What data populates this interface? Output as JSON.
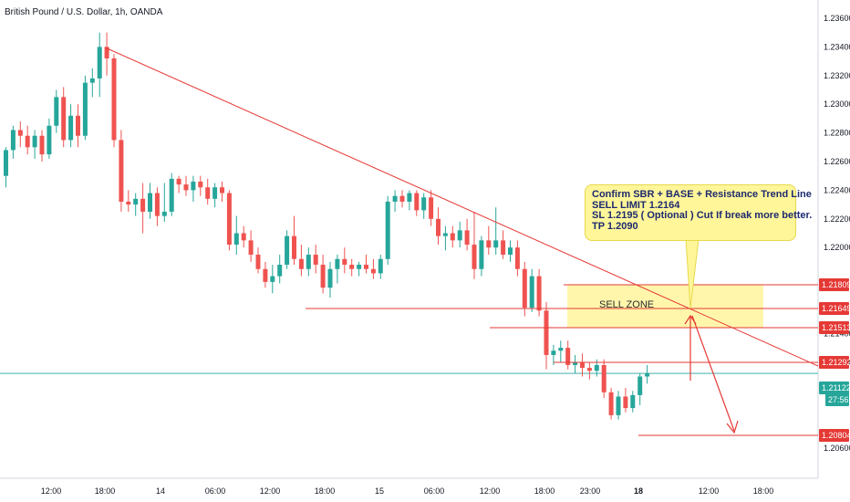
{
  "header": {
    "title": "British Pound / U.S. Dollar, 1h, OANDA"
  },
  "annotation": {
    "lines": [
      "Confirm SBR + BASE + Resistance Trend Line",
      "SELL LIMIT 1.2164",
      "SL 1.2195 ( Optional ) Cut If break more better.",
      "TP 1.2090"
    ],
    "zone_label": "SELL ZONE"
  },
  "colors": {
    "up": "#26a69a",
    "down": "#ef5350",
    "line": "#e53935",
    "zone": "#fff59d",
    "current": "#26a69a"
  },
  "chart_data": {
    "type": "candlestick",
    "title": "British Pound / U.S. Dollar, 1h, OANDA",
    "ylim": [
      1.2055,
      1.2375
    ],
    "x_ticks": [
      "12:00",
      "18:00",
      "14",
      "06:00",
      "12:00",
      "18:00",
      "15",
      "06:00",
      "12:00",
      "18:00",
      "23:00",
      "18",
      "12:00",
      "18:00"
    ],
    "y_ticks": [
      "1.23600",
      "1.23400",
      "1.23200",
      "1.23000",
      "1.22800",
      "1.22600",
      "1.22400",
      "1.22200",
      "1.22000",
      "1.21400",
      "1.21200",
      "1.20600"
    ],
    "price_labels": [
      {
        "value": 1.21809,
        "text": "1.21809"
      },
      {
        "value": 1.21649,
        "text": "1.21649"
      },
      {
        "value": 1.21513,
        "text": "1.21513"
      },
      {
        "value": 1.21292,
        "text": "1.21292"
      },
      {
        "value": 1.21122,
        "text": "1.21122"
      },
      {
        "value": 1.20804,
        "text": "1.20804"
      }
    ],
    "countdown": "27:56",
    "current_price": 1.21122,
    "candles": [
      [
        1.225,
        1.227,
        1.2242,
        1.2268
      ],
      [
        1.2268,
        1.2285,
        1.2262,
        1.2282
      ],
      [
        1.2282,
        1.2288,
        1.227,
        1.2278
      ],
      [
        1.2278,
        1.2285,
        1.2265,
        1.227
      ],
      [
        1.227,
        1.2282,
        1.2262,
        1.2278
      ],
      [
        1.2278,
        1.2282,
        1.226,
        1.2265
      ],
      [
        1.2265,
        1.229,
        1.2262,
        1.2285
      ],
      [
        1.2285,
        1.231,
        1.228,
        1.2305
      ],
      [
        1.2305,
        1.2312,
        1.227,
        1.2275
      ],
      [
        1.2275,
        1.23,
        1.227,
        1.2292
      ],
      [
        1.2292,
        1.23,
        1.227,
        1.2278
      ],
      [
        1.2278,
        1.232,
        1.2275,
        1.2315
      ],
      [
        1.2315,
        1.2325,
        1.2305,
        1.2318
      ],
      [
        1.2318,
        1.235,
        1.2305,
        1.234
      ],
      [
        1.234,
        1.235,
        1.232,
        1.2332
      ],
      [
        1.2332,
        1.2335,
        1.227,
        1.2275
      ],
      [
        1.2275,
        1.2282,
        1.2225,
        1.2232
      ],
      [
        1.2232,
        1.224,
        1.2225,
        1.223
      ],
      [
        1.223,
        1.2238,
        1.2222,
        1.2234
      ],
      [
        1.2234,
        1.2245,
        1.221,
        1.2225
      ],
      [
        1.2225,
        1.2245,
        1.222,
        1.2238
      ],
      [
        1.2238,
        1.2242,
        1.2215,
        1.2222
      ],
      [
        1.2222,
        1.2245,
        1.2218,
        1.2225
      ],
      [
        1.2225,
        1.2252,
        1.2222,
        1.2248
      ],
      [
        1.2248,
        1.225,
        1.2238,
        1.2244
      ],
      [
        1.2244,
        1.225,
        1.2236,
        1.224
      ],
      [
        1.224,
        1.225,
        1.2232,
        1.2246
      ],
      [
        1.2246,
        1.225,
        1.2236,
        1.2242
      ],
      [
        1.2242,
        1.2248,
        1.223,
        1.2234
      ],
      [
        1.2234,
        1.2245,
        1.2228,
        1.2242
      ],
      [
        1.2242,
        1.2246,
        1.2232,
        1.2238
      ],
      [
        1.2238,
        1.224,
        1.2198,
        1.2202
      ],
      [
        1.2202,
        1.2222,
        1.2195,
        1.221
      ],
      [
        1.221,
        1.2215,
        1.22,
        1.2205
      ],
      [
        1.2205,
        1.2212,
        1.219,
        1.2195
      ],
      [
        1.2195,
        1.22,
        1.2182,
        1.2185
      ],
      [
        1.2185,
        1.219,
        1.2172,
        1.2176
      ],
      [
        1.2176,
        1.2188,
        1.2168,
        1.218
      ],
      [
        1.218,
        1.2195,
        1.2175,
        1.2188
      ],
      [
        1.2188,
        1.2212,
        1.2185,
        1.2208
      ],
      [
        1.2208,
        1.2222,
        1.2188,
        1.2192
      ],
      [
        1.2192,
        1.2202,
        1.218,
        1.2185
      ],
      [
        1.2185,
        1.22,
        1.218,
        1.2195
      ],
      [
        1.2195,
        1.2202,
        1.2182,
        1.2188
      ],
      [
        1.2188,
        1.2195,
        1.2168,
        1.2172
      ],
      [
        1.2172,
        1.219,
        1.2165,
        1.2185
      ],
      [
        1.2185,
        1.2195,
        1.2175,
        1.2192
      ],
      [
        1.2192,
        1.22,
        1.2182,
        1.2188
      ],
      [
        1.2188,
        1.2192,
        1.218,
        1.2185
      ],
      [
        1.2185,
        1.219,
        1.218,
        1.2188
      ],
      [
        1.2188,
        1.2195,
        1.2182,
        1.2185
      ],
      [
        1.2185,
        1.2192,
        1.2178,
        1.2182
      ],
      [
        1.2182,
        1.2195,
        1.2178,
        1.2192
      ],
      [
        1.2192,
        1.2236,
        1.2188,
        1.2232
      ],
      [
        1.2232,
        1.224,
        1.2225,
        1.2236
      ],
      [
        1.2236,
        1.224,
        1.2228,
        1.2232
      ],
      [
        1.2232,
        1.224,
        1.2226,
        1.2238
      ],
      [
        1.2238,
        1.224,
        1.2222,
        1.2226
      ],
      [
        1.2226,
        1.2238,
        1.222,
        1.2235
      ],
      [
        1.2235,
        1.224,
        1.2215,
        1.222
      ],
      [
        1.222,
        1.2228,
        1.2202,
        1.2208
      ],
      [
        1.2208,
        1.2215,
        1.2198,
        1.221
      ],
      [
        1.221,
        1.2215,
        1.22,
        1.2205
      ],
      [
        1.2205,
        1.2218,
        1.22,
        1.2212
      ],
      [
        1.2212,
        1.222,
        1.2198,
        1.2202
      ],
      [
        1.2202,
        1.2225,
        1.2178,
        1.2185
      ],
      [
        1.2185,
        1.2208,
        1.218,
        1.2205
      ],
      [
        1.2205,
        1.2215,
        1.2195,
        1.22
      ],
      [
        1.22,
        1.2228,
        1.2195,
        1.2205
      ],
      [
        1.2205,
        1.2212,
        1.2192,
        1.2195
      ],
      [
        1.2195,
        1.2205,
        1.219,
        1.22
      ],
      [
        1.22,
        1.2205,
        1.218,
        1.2185
      ],
      [
        1.2185,
        1.219,
        1.2152,
        1.2158
      ],
      [
        1.2158,
        1.2185,
        1.2155,
        1.218
      ],
      [
        1.218,
        1.2185,
        1.2152,
        1.2156
      ],
      [
        1.2156,
        1.2162,
        1.2115,
        1.2125
      ],
      [
        1.2125,
        1.2132,
        1.2118,
        1.2128
      ],
      [
        1.2128,
        1.2135,
        1.212,
        1.213
      ],
      [
        1.213,
        1.2135,
        1.2115,
        1.2118
      ],
      [
        1.2118,
        1.2125,
        1.2112,
        1.212
      ],
      [
        1.212,
        1.2126,
        1.211,
        1.2116
      ],
      [
        1.2116,
        1.212,
        1.2108,
        1.2114
      ],
      [
        1.2114,
        1.2122,
        1.211,
        1.2118
      ],
      [
        1.2118,
        1.2122,
        1.2095,
        1.2099
      ],
      [
        1.2099,
        1.2102,
        1.208,
        1.2083
      ],
      [
        1.2083,
        1.21,
        1.208,
        1.2096
      ],
      [
        1.2096,
        1.2102,
        1.2085,
        1.2088
      ],
      [
        1.2088,
        1.21,
        1.2085,
        1.2097
      ],
      [
        1.2097,
        1.2112,
        1.209,
        1.211
      ],
      [
        1.211,
        1.2118,
        1.2105,
        1.2112
      ]
    ]
  }
}
